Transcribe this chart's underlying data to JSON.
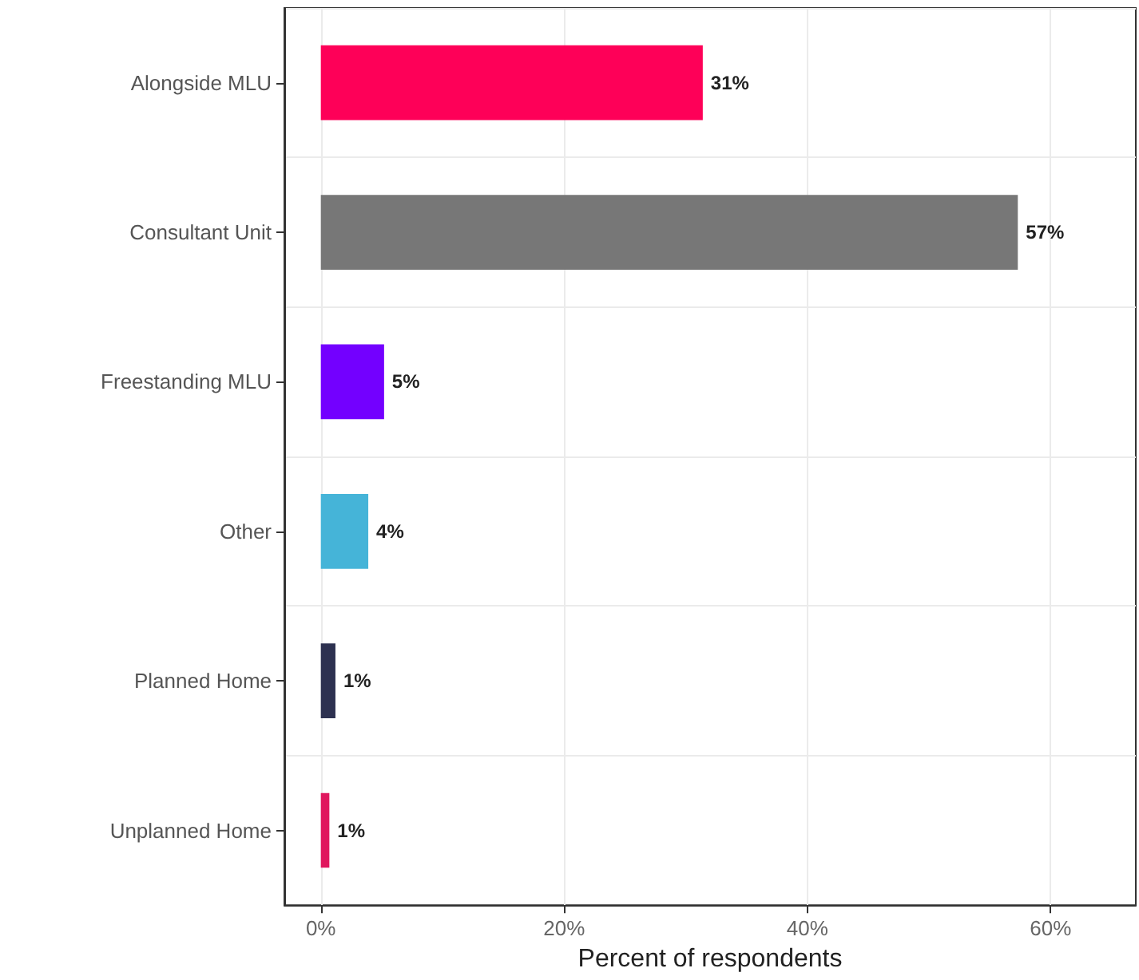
{
  "chart_data": {
    "type": "bar",
    "orientation": "horizontal",
    "xlabel": "Percent of respondents",
    "categories": [
      "Alongside MLU",
      "Consultant Unit",
      "Freestanding MLU",
      "Other",
      "Planned Home",
      "Unplanned Home"
    ],
    "values": [
      31.4,
      57.3,
      5.2,
      3.9,
      1.2,
      0.7
    ],
    "colors": [
      "#fe0058",
      "#777777",
      "#7300ff",
      "#45b4d8",
      "#2d3150",
      "#e0175e"
    ],
    "value_labels": [
      "31%",
      "57%",
      "5%",
      "4%",
      "1%",
      "1%"
    ],
    "xlim": [
      -3,
      67
    ],
    "xticks": [
      {
        "value": 0,
        "label": "0%"
      },
      {
        "value": 20,
        "label": "20%"
      },
      {
        "value": 40,
        "label": "40%"
      },
      {
        "value": 60,
        "label": "60%"
      }
    ],
    "grid": true
  }
}
